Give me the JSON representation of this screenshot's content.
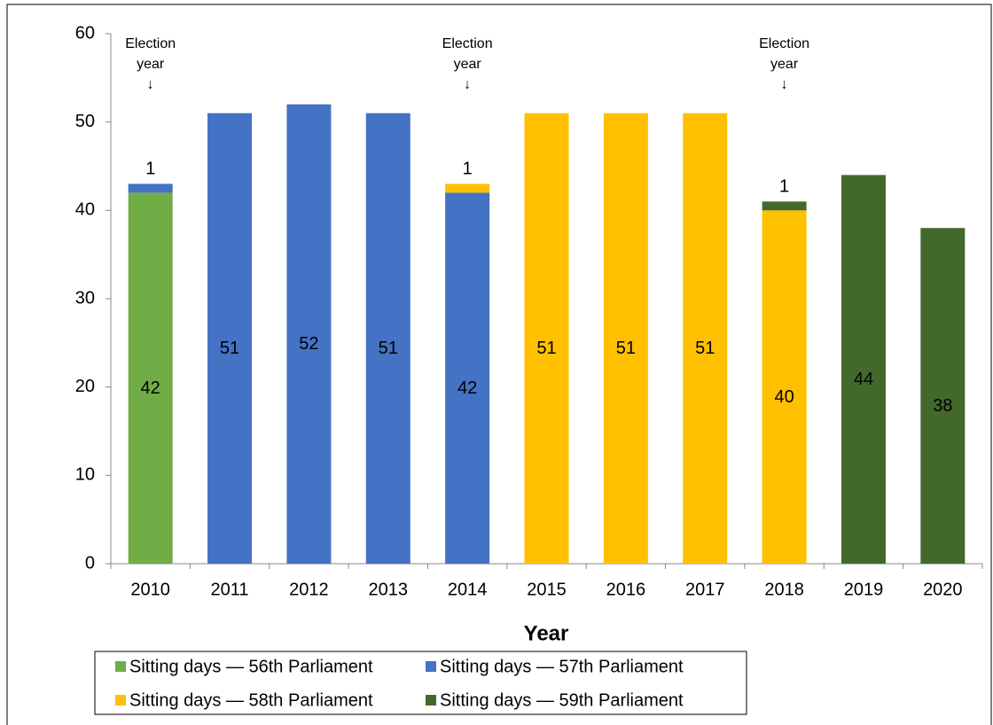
{
  "chart_data": {
    "type": "stacked_bar",
    "x_label": "Year",
    "categories": [
      "2010",
      "2011",
      "2012",
      "2013",
      "2014",
      "2015",
      "2016",
      "2017",
      "2018",
      "2019",
      "2020"
    ],
    "series": [
      {
        "name": "Sitting days — 56th Parliament",
        "color": "#70ad47",
        "values": [
          42,
          null,
          null,
          null,
          null,
          null,
          null,
          null,
          null,
          null,
          null
        ]
      },
      {
        "name": "Sitting days — 57th Parliament",
        "color": "#4472c4",
        "values": [
          1,
          51,
          52,
          51,
          42,
          null,
          null,
          null,
          null,
          null,
          null
        ]
      },
      {
        "name": "Sitting days — 58th Parliament",
        "color": "#ffc000",
        "values": [
          null,
          null,
          null,
          null,
          1,
          51,
          51,
          51,
          40,
          null,
          null
        ]
      },
      {
        "name": "Sitting days — 59th Parliament",
        "color": "#43682b",
        "values": [
          null,
          null,
          null,
          null,
          null,
          null,
          null,
          null,
          1,
          44,
          38
        ]
      }
    ],
    "annotations": [
      {
        "x": "2010",
        "text": [
          "Election",
          "year",
          "↓"
        ]
      },
      {
        "x": "2014",
        "text": [
          "Election",
          "year",
          "↓"
        ]
      },
      {
        "x": "2018",
        "text": [
          "Election",
          "year",
          "↓"
        ]
      }
    ],
    "ylim": [
      0,
      60
    ],
    "yticks": [
      0,
      10,
      20,
      30,
      40,
      50,
      60
    ],
    "grid": false
  }
}
